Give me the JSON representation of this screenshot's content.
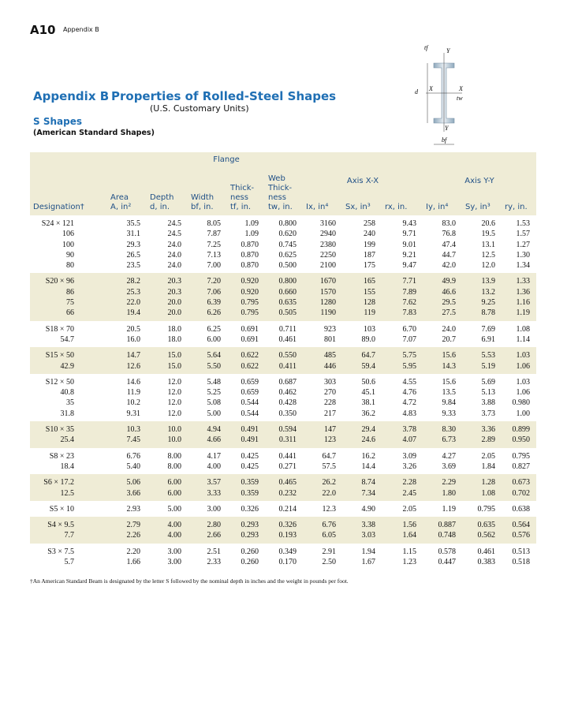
{
  "header": {
    "page_number": "A10",
    "running_head": "Appendix B"
  },
  "title": {
    "label": "Appendix B",
    "text": "Properties of Rolled-Steel Shapes",
    "subtitle": "(U.S. Customary Units)"
  },
  "section": {
    "title": "S Shapes",
    "subtitle": "(American Standard Shapes)"
  },
  "diagram": {
    "labels": [
      "tf",
      "Y",
      "d",
      "X",
      "X",
      "tw",
      "Y",
      "bf"
    ]
  },
  "table": {
    "group_labels": [
      "Flange",
      "Axis X-X",
      "Axis Y-Y"
    ],
    "columns": [
      [
        "Designation†"
      ],
      [
        "Area",
        "A, in²"
      ],
      [
        "Depth",
        "d, in."
      ],
      [
        "Width",
        "bf, in."
      ],
      [
        "Thick-",
        "ness",
        "tf, in."
      ],
      [
        "Web",
        "Thick-",
        "ness",
        "tw, in."
      ],
      [
        "Ix, in⁴"
      ],
      [
        "Sx, in³"
      ],
      [
        "rx, in."
      ],
      [
        "Iy, in⁴"
      ],
      [
        "Sy, in³"
      ],
      [
        "ry, in."
      ]
    ],
    "groups": [
      [
        [
          "S24 × 121",
          "35.5",
          "24.5",
          "8.05",
          "1.09",
          "0.800",
          "3160",
          "258",
          "9.43",
          "83.0",
          "20.6",
          "1.53"
        ],
        [
          "106",
          "31.1",
          "24.5",
          "7.87",
          "1.09",
          "0.620",
          "2940",
          "240",
          "9.71",
          "76.8",
          "19.5",
          "1.57"
        ],
        [
          "100",
          "29.3",
          "24.0",
          "7.25",
          "0.870",
          "0.745",
          "2380",
          "199",
          "9.01",
          "47.4",
          "13.1",
          "1.27"
        ],
        [
          "90",
          "26.5",
          "24.0",
          "7.13",
          "0.870",
          "0.625",
          "2250",
          "187",
          "9.21",
          "44.7",
          "12.5",
          "1.30"
        ],
        [
          "80",
          "23.5",
          "24.0",
          "7.00",
          "0.870",
          "0.500",
          "2100",
          "175",
          "9.47",
          "42.0",
          "12.0",
          "1.34"
        ]
      ],
      [
        [
          "S20 × 96",
          "28.2",
          "20.3",
          "7.20",
          "0.920",
          "0.800",
          "1670",
          "165",
          "7.71",
          "49.9",
          "13.9",
          "1.33"
        ],
        [
          "86",
          "25.3",
          "20.3",
          "7.06",
          "0.920",
          "0.660",
          "1570",
          "155",
          "7.89",
          "46.6",
          "13.2",
          "1.36"
        ],
        [
          "75",
          "22.0",
          "20.0",
          "6.39",
          "0.795",
          "0.635",
          "1280",
          "128",
          "7.62",
          "29.5",
          "9.25",
          "1.16"
        ],
        [
          "66",
          "19.4",
          "20.0",
          "6.26",
          "0.795",
          "0.505",
          "1190",
          "119",
          "7.83",
          "27.5",
          "8.78",
          "1.19"
        ]
      ],
      [
        [
          "S18 × 70",
          "20.5",
          "18.0",
          "6.25",
          "0.691",
          "0.711",
          "923",
          "103",
          "6.70",
          "24.0",
          "7.69",
          "1.08"
        ],
        [
          "54.7",
          "16.0",
          "18.0",
          "6.00",
          "0.691",
          "0.461",
          "801",
          "89.0",
          "7.07",
          "20.7",
          "6.91",
          "1.14"
        ]
      ],
      [
        [
          "S15 × 50",
          "14.7",
          "15.0",
          "5.64",
          "0.622",
          "0.550",
          "485",
          "64.7",
          "5.75",
          "15.6",
          "5.53",
          "1.03"
        ],
        [
          "42.9",
          "12.6",
          "15.0",
          "5.50",
          "0.622",
          "0.411",
          "446",
          "59.4",
          "5.95",
          "14.3",
          "5.19",
          "1.06"
        ]
      ],
      [
        [
          "S12 × 50",
          "14.6",
          "12.0",
          "5.48",
          "0.659",
          "0.687",
          "303",
          "50.6",
          "4.55",
          "15.6",
          "5.69",
          "1.03"
        ],
        [
          "40.8",
          "11.9",
          "12.0",
          "5.25",
          "0.659",
          "0.462",
          "270",
          "45.1",
          "4.76",
          "13.5",
          "5.13",
          "1.06"
        ],
        [
          "35",
          "10.2",
          "12.0",
          "5.08",
          "0.544",
          "0.428",
          "228",
          "38.1",
          "4.72",
          "9.84",
          "3.88",
          "0.980"
        ],
        [
          "31.8",
          "9.31",
          "12.0",
          "5.00",
          "0.544",
          "0.350",
          "217",
          "36.2",
          "4.83",
          "9.33",
          "3.73",
          "1.00"
        ]
      ],
      [
        [
          "S10 × 35",
          "10.3",
          "10.0",
          "4.94",
          "0.491",
          "0.594",
          "147",
          "29.4",
          "3.78",
          "8.30",
          "3.36",
          "0.899"
        ],
        [
          "25.4",
          "7.45",
          "10.0",
          "4.66",
          "0.491",
          "0.311",
          "123",
          "24.6",
          "4.07",
          "6.73",
          "2.89",
          "0.950"
        ]
      ],
      [
        [
          "S8 × 23",
          "6.76",
          "8.00",
          "4.17",
          "0.425",
          "0.441",
          "64.7",
          "16.2",
          "3.09",
          "4.27",
          "2.05",
          "0.795"
        ],
        [
          "18.4",
          "5.40",
          "8.00",
          "4.00",
          "0.425",
          "0.271",
          "57.5",
          "14.4",
          "3.26",
          "3.69",
          "1.84",
          "0.827"
        ]
      ],
      [
        [
          "S6 × 17.2",
          "5.06",
          "6.00",
          "3.57",
          "0.359",
          "0.465",
          "26.2",
          "8.74",
          "2.28",
          "2.29",
          "1.28",
          "0.673"
        ],
        [
          "12.5",
          "3.66",
          "6.00",
          "3.33",
          "0.359",
          "0.232",
          "22.0",
          "7.34",
          "2.45",
          "1.80",
          "1.08",
          "0.702"
        ]
      ],
      [
        [
          "S5 × 10",
          "2.93",
          "5.00",
          "3.00",
          "0.326",
          "0.214",
          "12.3",
          "4.90",
          "2.05",
          "1.19",
          "0.795",
          "0.638"
        ]
      ],
      [
        [
          "S4 × 9.5",
          "2.79",
          "4.00",
          "2.80",
          "0.293",
          "0.326",
          "6.76",
          "3.38",
          "1.56",
          "0.887",
          "0.635",
          "0.564"
        ],
        [
          "7.7",
          "2.26",
          "4.00",
          "2.66",
          "0.293",
          "0.193",
          "6.05",
          "3.03",
          "1.64",
          "0.748",
          "0.562",
          "0.576"
        ]
      ],
      [
        [
          "S3 × 7.5",
          "2.20",
          "3.00",
          "2.51",
          "0.260",
          "0.349",
          "2.91",
          "1.94",
          "1.15",
          "0.578",
          "0.461",
          "0.513"
        ],
        [
          "5.7",
          "1.66",
          "3.00",
          "2.33",
          "0.260",
          "0.170",
          "2.50",
          "1.67",
          "1.23",
          "0.447",
          "0.383",
          "0.518"
        ]
      ]
    ]
  },
  "footnote": "†An American Standard Beam is designated by the letter S followed by the nominal depth in inches and the weight in pounds per foot."
}
